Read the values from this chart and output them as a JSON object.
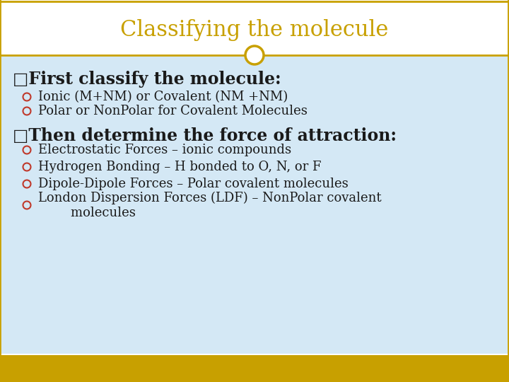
{
  "title": "Classifying the molecule",
  "title_color": "#C8A000",
  "title_fontsize": 22,
  "title_font": "serif",
  "bg_color": "#FFFFFF",
  "content_bg_color": "#D4E8F5",
  "header_line_color": "#C8A000",
  "footer_color": "#C8A000",
  "circle_color": "#C8A000",
  "bullet_color": "#C0392B",
  "heading1": "□First classify the molecule:",
  "heading1_fontsize": 17,
  "heading1_font": "serif",
  "bullets1": [
    "Ionic (M+NM) or Covalent (NM +NM)",
    "Polar or NonPolar for Covalent Molecules"
  ],
  "heading2": "□Then determine the force of attraction:",
  "heading2_fontsize": 17,
  "heading2_font": "serif",
  "bullets2": [
    "Electrostatic Forces – ionic compounds",
    "Hydrogen Bonding – H bonded to O, N, or F",
    "Dipole-Dipole Forces – Polar covalent molecules",
    "London Dispersion Forces (LDF) – NonPolar covalent\n        molecules"
  ],
  "bullet_fontsize": 13,
  "text_color": "#1A1A1A"
}
